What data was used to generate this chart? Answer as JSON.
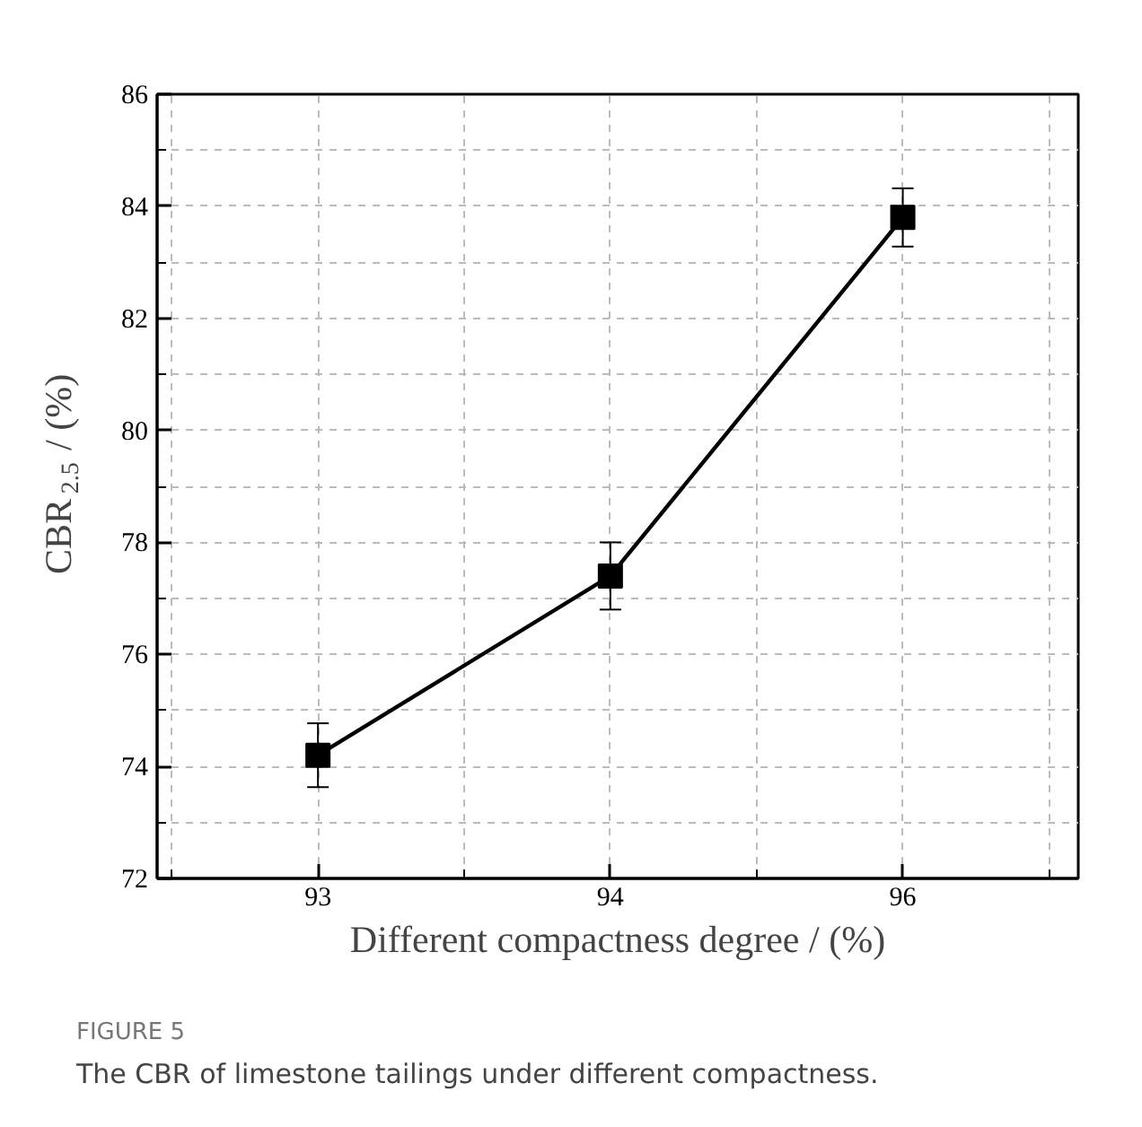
{
  "chart_data": {
    "type": "line",
    "xlabel": "Different compactness degree / (%)",
    "ylabel": "CBR$_{2.5}$ / (%)",
    "categories": [
      "93",
      "94",
      "96"
    ],
    "series": [
      {
        "color": "#000000",
        "values": [
          74.2,
          77.4,
          83.8
        ],
        "errors": [
          0.57,
          0.6,
          0.52
        ]
      }
    ],
    "marker": "square",
    "line_style": "solid",
    "grid": true,
    "ylim": [
      72,
      86
    ],
    "yticks": [
      72,
      {
        "value": 73,
        "label": null
      },
      74,
      {
        "value": 75,
        "label": null
      },
      76,
      {
        "value": 77,
        "label": null
      },
      78,
      {
        "value": 79,
        "label": null
      },
      80,
      {
        "value": 81,
        "label": null
      },
      82,
      {
        "value": 83,
        "label": null
      },
      84,
      {
        "value": 85,
        "label": null
      },
      86
    ],
    "annotations": [
      "FIGURE 5",
      "The CBR of limestone tailings under different compactness."
    ]
  }
}
